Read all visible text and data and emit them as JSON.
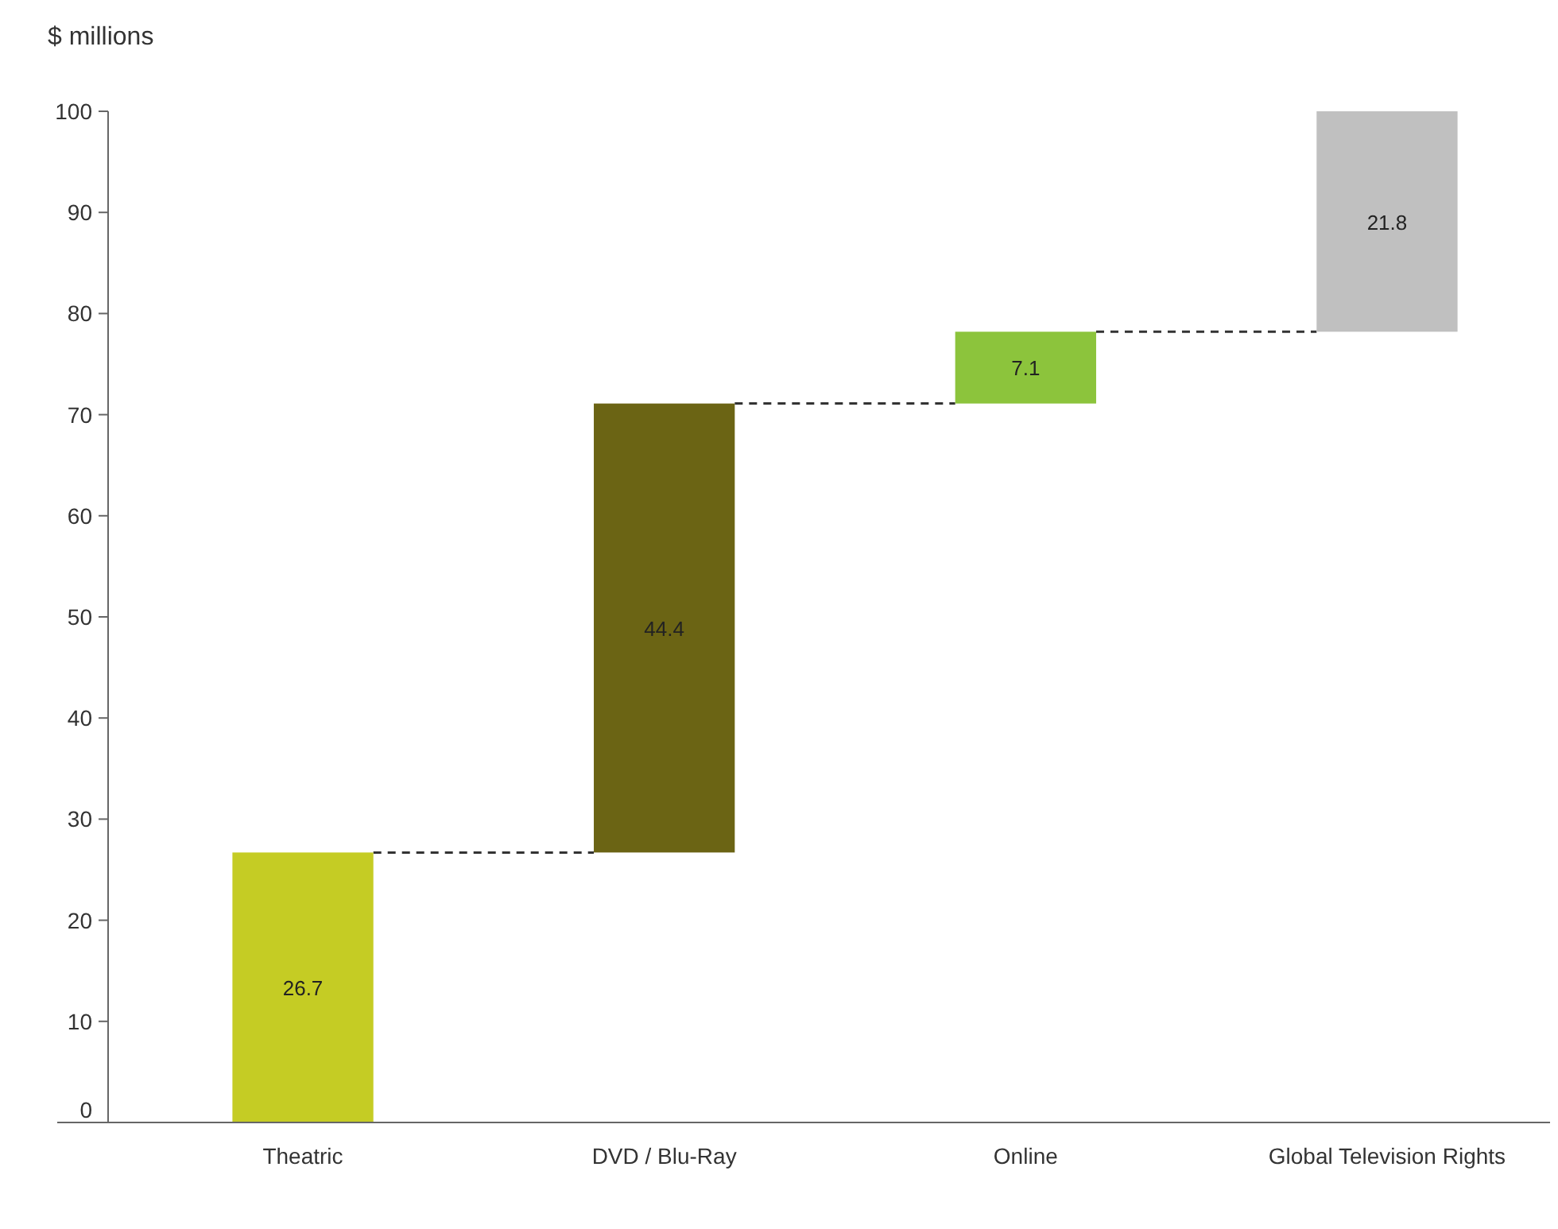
{
  "chart_data": {
    "type": "bar",
    "ylabel": "$ millions",
    "categories": [
      "Theatric",
      "DVD / Blu-Ray",
      "Online",
      "Global Television Rights"
    ],
    "values": [
      26.7,
      44.4,
      7.1,
      21.8
    ],
    "base": [
      0,
      26.7,
      71.1,
      78.2
    ],
    "colors": [
      "#c5cc24",
      "#6b6414",
      "#8cc43c",
      "#c0c0c0"
    ],
    "ylim": [
      0,
      100
    ],
    "yticks": [
      0,
      10,
      20,
      30,
      40,
      50,
      60,
      70,
      80,
      90,
      100
    ],
    "grid": false,
    "data_labels": true
  }
}
